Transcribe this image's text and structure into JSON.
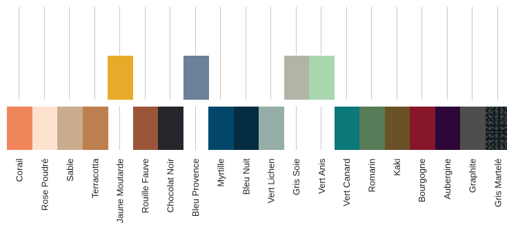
{
  "colors": [
    {
      "name": "Corail",
      "hex": "#f0855a",
      "row": "bottom"
    },
    {
      "name": "Rose Poudré",
      "hex": "#fde3cf",
      "row": "bottom"
    },
    {
      "name": "Sable",
      "hex": "#c9ab8e",
      "row": "bottom"
    },
    {
      "name": "Terracotta",
      "hex": "#bd7f4e",
      "row": "bottom"
    },
    {
      "name": "Jaune Moutarde",
      "hex": "#e8ab29",
      "row": "top"
    },
    {
      "name": "Rouille  Fauve",
      "hex": "#9a5538",
      "row": "bottom"
    },
    {
      "name": "Chocolat Noir",
      "hex": "#27252b",
      "row": "bottom"
    },
    {
      "name": "Bleu Provence",
      "hex": "#6a8199",
      "row": "top"
    },
    {
      "name": "Myrtille",
      "hex": "#02476a",
      "row": "bottom"
    },
    {
      "name": "Bleu Nuit",
      "hex": "#042c41",
      "row": "bottom"
    },
    {
      "name": "Vert Lichen",
      "hex": "#96aea8",
      "row": "bottom"
    },
    {
      "name": "Gris Soie",
      "hex": "#b1b4a6",
      "row": "top"
    },
    {
      "name": "Vert Anis",
      "hex": "#a8d6ad",
      "row": "top"
    },
    {
      "name": "Vert Canard",
      "hex": "#0b7879",
      "row": "bottom"
    },
    {
      "name": "Romarin",
      "hex": "#577a57",
      "row": "bottom"
    },
    {
      "name": "Kaki",
      "hex": "#6b5226",
      "row": "bottom"
    },
    {
      "name": "Bourgogne",
      "hex": "#881629",
      "row": "bottom"
    },
    {
      "name": "Aubergine",
      "hex": "#2c0738",
      "row": "bottom"
    },
    {
      "name": "Graphite",
      "hex": "#504e4c",
      "row": "bottom"
    },
    {
      "name": "Gris Martelé",
      "hex": "#151a1c",
      "row": "bottom",
      "texture": "hammered"
    }
  ]
}
